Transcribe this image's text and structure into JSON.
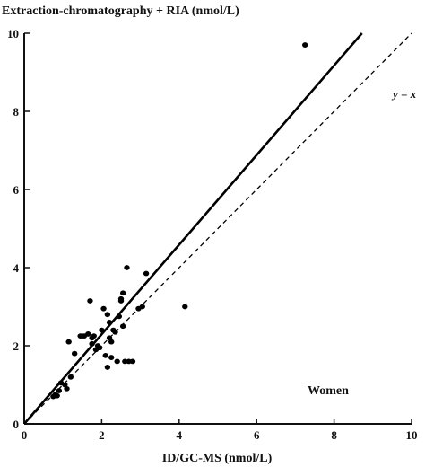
{
  "chart_data": {
    "type": "scatter",
    "title": "Extraction-chromatography + RIA (nmol/L)",
    "xlabel": "ID/GC-MS (nmol/L)",
    "ylabel": "",
    "xlim": [
      0,
      10
    ],
    "ylim": [
      0,
      10
    ],
    "xticks": [
      0,
      2,
      4,
      6,
      8,
      10
    ],
    "yticks": [
      0,
      2,
      4,
      6,
      8,
      10
    ],
    "grid": false,
    "points": [
      {
        "x": 0.75,
        "y": 0.7
      },
      {
        "x": 0.8,
        "y": 0.75
      },
      {
        "x": 0.85,
        "y": 0.72
      },
      {
        "x": 0.9,
        "y": 0.85
      },
      {
        "x": 0.95,
        "y": 1.05
      },
      {
        "x": 1.05,
        "y": 1.0
      },
      {
        "x": 1.1,
        "y": 0.9
      },
      {
        "x": 1.2,
        "y": 1.2
      },
      {
        "x": 1.15,
        "y": 2.1
      },
      {
        "x": 1.3,
        "y": 1.8
      },
      {
        "x": 1.45,
        "y": 2.25
      },
      {
        "x": 1.5,
        "y": 2.25
      },
      {
        "x": 1.55,
        "y": 2.25
      },
      {
        "x": 1.65,
        "y": 2.3
      },
      {
        "x": 1.7,
        "y": 3.15
      },
      {
        "x": 1.75,
        "y": 2.2
      },
      {
        "x": 1.75,
        "y": 2.05
      },
      {
        "x": 1.8,
        "y": 2.25
      },
      {
        "x": 1.85,
        "y": 1.9
      },
      {
        "x": 1.9,
        "y": 2.0
      },
      {
        "x": 1.95,
        "y": 1.95
      },
      {
        "x": 2.0,
        "y": 2.4
      },
      {
        "x": 2.05,
        "y": 2.95
      },
      {
        "x": 2.1,
        "y": 1.75
      },
      {
        "x": 2.15,
        "y": 2.8
      },
      {
        "x": 2.15,
        "y": 1.45
      },
      {
        "x": 2.2,
        "y": 2.6
      },
      {
        "x": 2.2,
        "y": 2.2
      },
      {
        "x": 2.25,
        "y": 1.7
      },
      {
        "x": 2.25,
        "y": 2.1
      },
      {
        "x": 2.3,
        "y": 2.4
      },
      {
        "x": 2.35,
        "y": 2.35
      },
      {
        "x": 2.4,
        "y": 1.6
      },
      {
        "x": 2.45,
        "y": 2.75
      },
      {
        "x": 2.5,
        "y": 3.2
      },
      {
        "x": 2.5,
        "y": 3.15
      },
      {
        "x": 2.55,
        "y": 3.35
      },
      {
        "x": 2.55,
        "y": 2.5
      },
      {
        "x": 2.6,
        "y": 1.6
      },
      {
        "x": 2.65,
        "y": 4.0
      },
      {
        "x": 2.7,
        "y": 1.6
      },
      {
        "x": 2.8,
        "y": 1.6
      },
      {
        "x": 2.95,
        "y": 2.95
      },
      {
        "x": 3.05,
        "y": 3.0
      },
      {
        "x": 3.15,
        "y": 3.85
      },
      {
        "x": 4.15,
        "y": 3.0
      },
      {
        "x": 7.25,
        "y": 9.7
      }
    ],
    "lines": [
      {
        "kind": "regression",
        "style": "solid",
        "from": [
          0,
          0
        ],
        "to": [
          8.72,
          10
        ]
      },
      {
        "kind": "identity",
        "style": "dashed",
        "from": [
          0,
          0
        ],
        "to": [
          10,
          10
        ],
        "label": "y = x"
      }
    ],
    "annotations": [
      "Women"
    ],
    "identity_label": "y = x"
  }
}
